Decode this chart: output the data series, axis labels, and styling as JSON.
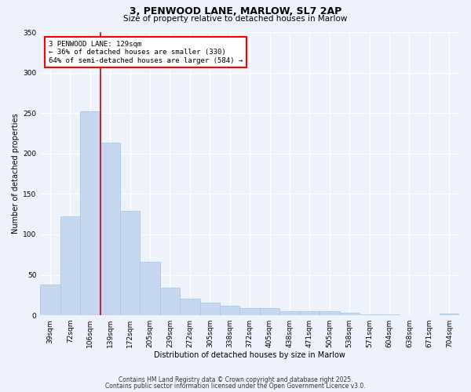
{
  "title": "3, PENWOOD LANE, MARLOW, SL7 2AP",
  "subtitle": "Size of property relative to detached houses in Marlow",
  "xlabel": "Distribution of detached houses by size in Marlow",
  "ylabel": "Number of detached properties",
  "bar_color": "#c5d8f0",
  "bar_edge_color": "#a8c8e8",
  "bins": [
    "39sqm",
    "72sqm",
    "106sqm",
    "139sqm",
    "172sqm",
    "205sqm",
    "239sqm",
    "272sqm",
    "305sqm",
    "338sqm",
    "372sqm",
    "405sqm",
    "438sqm",
    "471sqm",
    "505sqm",
    "538sqm",
    "571sqm",
    "604sqm",
    "638sqm",
    "671sqm",
    "704sqm"
  ],
  "values": [
    38,
    122,
    252,
    213,
    129,
    66,
    34,
    20,
    16,
    12,
    9,
    9,
    5,
    5,
    5,
    3,
    1,
    1,
    0,
    0,
    2
  ],
  "vline_bin_index": 2,
  "vline_color": "#cc0000",
  "annotation_line1": "3 PENWOOD LANE: 129sqm",
  "annotation_line2": "← 36% of detached houses are smaller (330)",
  "annotation_line3": "64% of semi-detached houses are larger (584) →",
  "ylim": [
    0,
    350
  ],
  "yticks": [
    0,
    50,
    100,
    150,
    200,
    250,
    300,
    350
  ],
  "background_color": "#eef2fa",
  "grid_color": "#ffffff",
  "title_fontsize": 9,
  "subtitle_fontsize": 7.5,
  "axis_label_fontsize": 7,
  "tick_fontsize": 6.5,
  "annotation_fontsize": 6.5,
  "footnote1": "Contains HM Land Registry data © Crown copyright and database right 2025.",
  "footnote2": "Contains public sector information licensed under the Open Government Licence v3.0."
}
